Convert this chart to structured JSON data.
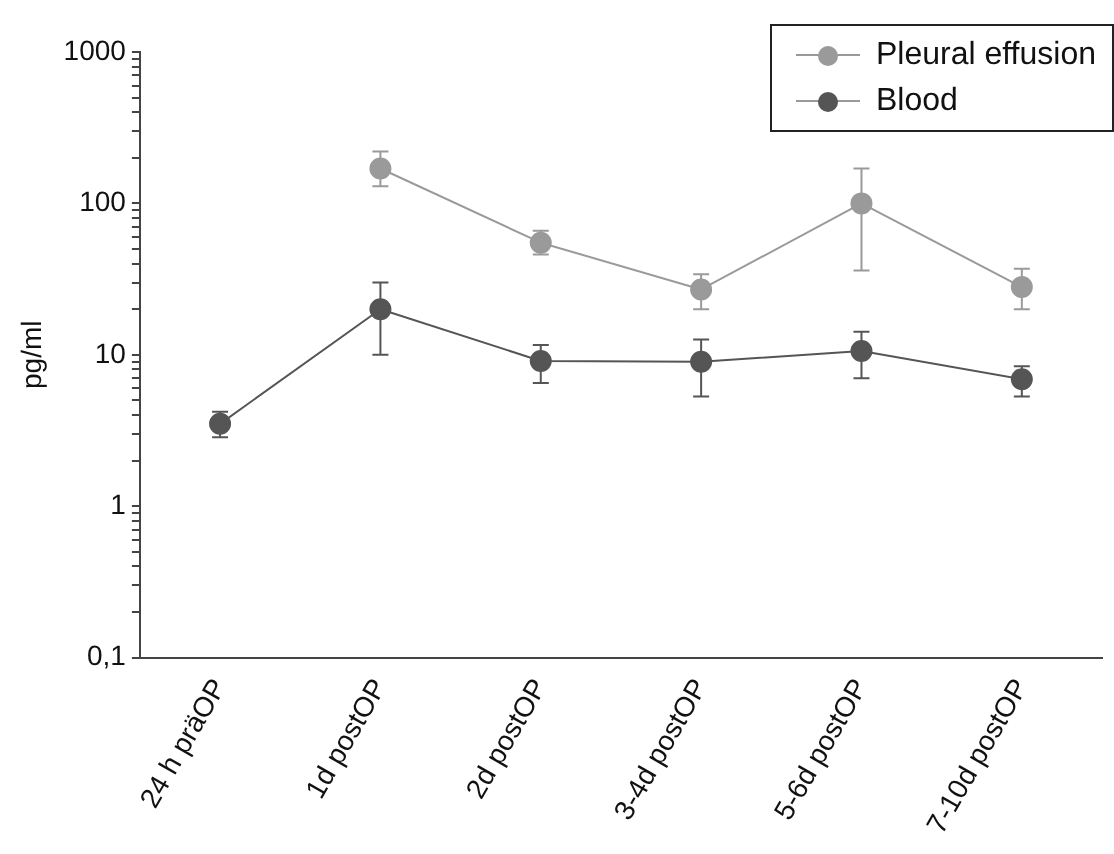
{
  "chart_data": {
    "type": "line",
    "ylabel": "pg/ml",
    "categories": [
      "24 h präOP",
      "1d postOP",
      "2d postOP",
      "3-4d postOP",
      "5-6d postOP",
      "7-10d postOP"
    ],
    "series": [
      {
        "name": "Pleural effusion",
        "color": "#9a9a9a",
        "values": [
          null,
          170,
          55,
          27,
          100,
          28
        ],
        "errors": [
          null,
          [
            130,
            220
          ],
          [
            46,
            66
          ],
          [
            20,
            34
          ],
          [
            36,
            170
          ],
          [
            20,
            37
          ]
        ]
      },
      {
        "name": "Blood",
        "color": "#555555",
        "values": [
          3.5,
          20,
          9.1,
          9,
          10.6,
          6.9
        ],
        "errors": [
          [
            2.85,
            4.2
          ],
          [
            10,
            30
          ],
          [
            6.5,
            11.6
          ],
          [
            5.3,
            12.6
          ],
          [
            7,
            14.2
          ],
          [
            5.3,
            8.4
          ]
        ]
      }
    ],
    "log": true,
    "ylim": [
      0.1,
      1000
    ],
    "yticks": [
      {
        "value": 0.1,
        "label": "0,1"
      },
      {
        "value": 0.2,
        "label": null
      },
      {
        "value": 0.3,
        "label": null
      },
      {
        "value": 0.4,
        "label": null
      },
      {
        "value": 0.5,
        "label": null
      },
      {
        "value": 0.6,
        "label": null
      },
      {
        "value": 0.7,
        "label": null
      },
      {
        "value": 0.8,
        "label": null
      },
      {
        "value": 0.9,
        "label": null
      },
      1,
      {
        "value": 2,
        "label": null
      },
      {
        "value": 3,
        "label": null
      },
      {
        "value": 4,
        "label": null
      },
      {
        "value": 5,
        "label": null
      },
      {
        "value": 6,
        "label": null
      },
      {
        "value": 7,
        "label": null
      },
      {
        "value": 8,
        "label": null
      },
      {
        "value": 9,
        "label": null
      },
      10,
      {
        "value": 20,
        "label": null
      },
      {
        "value": 30,
        "label": null
      },
      {
        "value": 40,
        "label": null
      },
      {
        "value": 50,
        "label": null
      },
      {
        "value": 60,
        "label": null
      },
      {
        "value": 70,
        "label": null
      },
      {
        "value": 80,
        "label": null
      },
      {
        "value": 90,
        "label": null
      },
      100,
      {
        "value": 200,
        "label": null
      },
      {
        "value": 300,
        "label": null
      },
      {
        "value": 400,
        "label": null
      },
      {
        "value": 500,
        "label": null
      },
      {
        "value": 600,
        "label": null
      },
      {
        "value": 700,
        "label": null
      },
      {
        "value": 800,
        "label": null
      },
      {
        "value": 900,
        "label": null
      },
      1000
    ],
    "grid": false,
    "legend": "top right",
    "marker": "circle",
    "line_style": "solid"
  }
}
